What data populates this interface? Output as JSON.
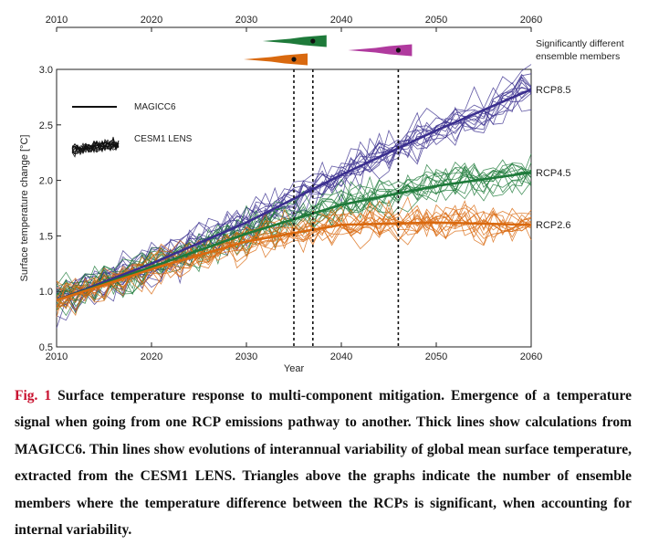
{
  "chart_data": {
    "type": "line",
    "xlabel": "Year",
    "ylabel": "Surface temperature change [°C]",
    "xlim": [
      2010,
      2060
    ],
    "ylim": [
      0.5,
      3.0
    ],
    "x_ticks": [
      "2010",
      "2020",
      "2030",
      "2040",
      "2050",
      "2060"
    ],
    "y_ticks": [
      "0.5",
      "1.0",
      "1.5",
      "2.0",
      "2.5",
      "3.0"
    ],
    "top_axis_ticks": [
      "2010",
      "2020",
      "2030",
      "2040",
      "2050",
      "2060"
    ],
    "grid": false,
    "legend_position": "top-left",
    "legend": [
      {
        "label": "MAGICC6",
        "style": "thick line"
      },
      {
        "label": "CESM1 LENS",
        "style": "ensemble of thin lines"
      }
    ],
    "series": [
      {
        "name": "RCP8.5",
        "color": "#3b2f8f",
        "mean": {
          "x": [
            2010,
            2020,
            2030,
            2040,
            2050,
            2060
          ],
          "y": [
            0.92,
            1.25,
            1.62,
            2.05,
            2.45,
            2.82
          ]
        },
        "ensemble_spread": 0.1
      },
      {
        "name": "RCP4.5",
        "color": "#1e7a3a",
        "mean": {
          "x": [
            2010,
            2020,
            2030,
            2040,
            2050,
            2060
          ],
          "y": [
            0.92,
            1.22,
            1.52,
            1.78,
            1.95,
            2.07
          ]
        },
        "ensemble_spread": 0.1
      },
      {
        "name": "RCP2.6",
        "color": "#d9690f",
        "mean": {
          "x": [
            2010,
            2020,
            2030,
            2040,
            2050,
            2060
          ],
          "y": [
            0.92,
            1.2,
            1.45,
            1.6,
            1.62,
            1.6
          ]
        },
        "ensemble_spread": 0.1
      }
    ],
    "emergence_years": [
      2035,
      2037,
      2046
    ],
    "emergence_markers": [
      {
        "color": "#1e7a3a",
        "year": 2037
      },
      {
        "color": "#d9690f",
        "year": 2035
      },
      {
        "color": "#b03a9e",
        "year": 2046
      }
    ],
    "annotation": "Significantly different ensemble members"
  },
  "caption": {
    "label": "Fig. 1",
    "title": "Surface temperature response to multi-component mitigation.",
    "body": "Emergence of a temperature signal when going from one RCP emissions pathway to another. Thick lines show calculations from MAGICC6. Thin lines show evolutions of interannual variability of global mean surface temperature, extracted from the CESM1 LENS. Triangles above the graphs indicate the number of ensemble members where the temperature difference between the RCPs is significant, when accounting for internal variability."
  }
}
